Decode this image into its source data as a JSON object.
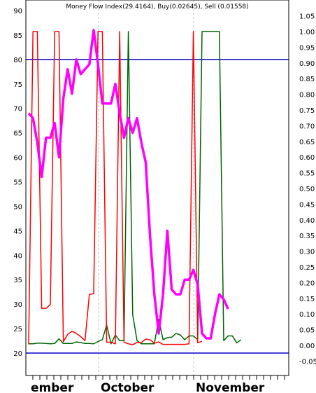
{
  "chart_data": {
    "type": "line",
    "title": "Money Flow Index(29.4164), Buy(0.02645), Sell (0.01558)",
    "x_labels": [
      "ember",
      "October",
      "November"
    ],
    "left_axis": {
      "ticks": [
        "90",
        "85",
        "80",
        "75",
        "70",
        "65",
        "60",
        "55",
        "50",
        "45",
        "40",
        "35",
        "30",
        "25",
        "20"
      ],
      "range": [
        20,
        90
      ]
    },
    "right_axis": {
      "ticks": [
        "1.05",
        "1.00",
        "0.95",
        "0.90",
        "0.85",
        "0.80",
        "0.75",
        "0.70",
        "0.65",
        "0.60",
        "0.55",
        "0.50",
        "0.45",
        "0.40",
        "0.35",
        "0.30",
        "0.25",
        "0.20",
        "0.15",
        "0.10",
        "0.05",
        "0.00",
        "-0.05"
      ],
      "range": [
        -0.05,
        1.05
      ]
    },
    "reference_lines": [
      80,
      20
    ],
    "colors": {
      "mfi": "#ff00ff",
      "buy": "#006400",
      "sell": "#ff0000",
      "reference": "#0000cc",
      "grid": "#c0c0c0",
      "border": "#000000"
    },
    "series": [
      {
        "name": "Money Flow Index",
        "axis": "left",
        "values": [
          [
            0,
            69
          ],
          [
            1,
            68
          ],
          [
            2,
            63
          ],
          [
            3,
            56
          ],
          [
            4,
            64
          ],
          [
            5,
            64
          ],
          [
            6,
            67
          ],
          [
            7,
            60
          ],
          [
            8,
            72
          ],
          [
            9,
            78
          ],
          [
            10,
            73
          ],
          [
            11,
            80
          ],
          [
            12,
            77
          ],
          [
            13,
            78
          ],
          [
            14,
            79
          ],
          [
            15,
            86
          ],
          [
            16,
            79
          ],
          [
            17,
            71
          ],
          [
            18,
            71
          ],
          [
            19,
            71
          ],
          [
            20,
            75
          ],
          [
            21,
            69
          ],
          [
            22,
            64
          ],
          [
            23,
            68
          ],
          [
            24,
            65
          ],
          [
            25,
            68
          ],
          [
            26,
            63
          ],
          [
            27,
            59
          ],
          [
            28,
            44
          ],
          [
            29,
            32
          ],
          [
            30,
            24
          ],
          [
            31,
            32
          ],
          [
            32,
            45
          ],
          [
            33,
            33
          ],
          [
            34,
            32
          ],
          [
            35,
            32
          ],
          [
            36,
            35
          ],
          [
            37,
            35
          ],
          [
            38,
            37
          ],
          [
            39,
            34
          ],
          [
            40,
            24
          ],
          [
            41,
            23
          ],
          [
            42,
            23
          ],
          [
            43,
            28
          ],
          [
            44,
            32
          ],
          [
            45,
            31
          ],
          [
            46,
            29
          ]
        ]
      },
      {
        "name": "Buy",
        "axis": "right",
        "values": [
          [
            0,
            0.005
          ],
          [
            1,
            0.005
          ],
          [
            2,
            0.007
          ],
          [
            3,
            0.007
          ],
          [
            4,
            0.006
          ],
          [
            5,
            0.005
          ],
          [
            6,
            0.006
          ],
          [
            7,
            0.021
          ],
          [
            8,
            0.006
          ],
          [
            9,
            0.006
          ],
          [
            10,
            0.006
          ],
          [
            11,
            0.011
          ],
          [
            12,
            0.009
          ],
          [
            13,
            0.006
          ],
          [
            14,
            0.006
          ],
          [
            15,
            0.005
          ],
          [
            16,
            0.012
          ],
          [
            17,
            0.018
          ],
          [
            18,
            0.065
          ],
          [
            19,
            0.005
          ],
          [
            20,
            0.033
          ],
          [
            21,
            0.015
          ],
          [
            22,
            0.015
          ],
          [
            23,
            1.0
          ],
          [
            24,
            0.098
          ],
          [
            25,
            0.015
          ],
          [
            26,
            0.005
          ],
          [
            27,
            0.005
          ],
          [
            28,
            0.005
          ],
          [
            29,
            0.005
          ],
          [
            30,
            0.083
          ],
          [
            31,
            0.018
          ],
          [
            32,
            0.025
          ],
          [
            33,
            0.026
          ],
          [
            34,
            0.038
          ],
          [
            35,
            0.033
          ],
          [
            36,
            0.018
          ],
          [
            37,
            0.03
          ],
          [
            38,
            0.03
          ],
          [
            39,
            0.018
          ],
          [
            40,
            1.0
          ],
          [
            41,
            1.0
          ],
          [
            42,
            1.0
          ],
          [
            43,
            1.0
          ],
          [
            44,
            1.0
          ],
          [
            45,
            0.015
          ],
          [
            46,
            0.03
          ],
          [
            47,
            0.03
          ],
          [
            48,
            0.008
          ],
          [
            49,
            0.018
          ]
        ]
      },
      {
        "name": "Sell",
        "axis": "right",
        "values": [
          [
            0,
            0.003
          ],
          [
            1,
            1.0
          ],
          [
            2,
            1.0
          ],
          [
            3,
            0.118
          ],
          [
            4,
            0.118
          ],
          [
            5,
            0.13
          ],
          [
            6,
            1.0
          ],
          [
            7,
            1.0
          ],
          [
            8,
            0.012
          ],
          [
            9,
            0.035
          ],
          [
            10,
            0.045
          ],
          [
            11,
            0.038
          ],
          [
            12,
            0.028
          ],
          [
            13,
            0.015
          ],
          [
            14,
            0.162
          ],
          [
            15,
            0.165
          ],
          [
            16,
            1.0
          ],
          [
            17,
            1.0
          ],
          [
            18,
            0.01
          ],
          [
            19,
            0.01
          ],
          [
            20,
            0.005
          ],
          [
            21,
            1.0
          ],
          [
            22,
            0.01
          ],
          [
            23,
            0.005
          ],
          [
            24,
            0.002
          ],
          [
            25,
            0.009
          ],
          [
            26,
            0.009
          ],
          [
            27,
            0.02
          ],
          [
            28,
            0.018
          ],
          [
            29,
            0.007
          ],
          [
            30,
            0.011
          ],
          [
            31,
            0.003
          ],
          [
            32,
            0.003
          ],
          [
            33,
            0.003
          ],
          [
            34,
            0.003
          ],
          [
            35,
            0.003
          ],
          [
            36,
            0.003
          ],
          [
            37,
            0.005
          ],
          [
            38,
            1.0
          ],
          [
            39,
            0.008
          ],
          [
            40,
            0.013
          ]
        ]
      }
    ]
  }
}
